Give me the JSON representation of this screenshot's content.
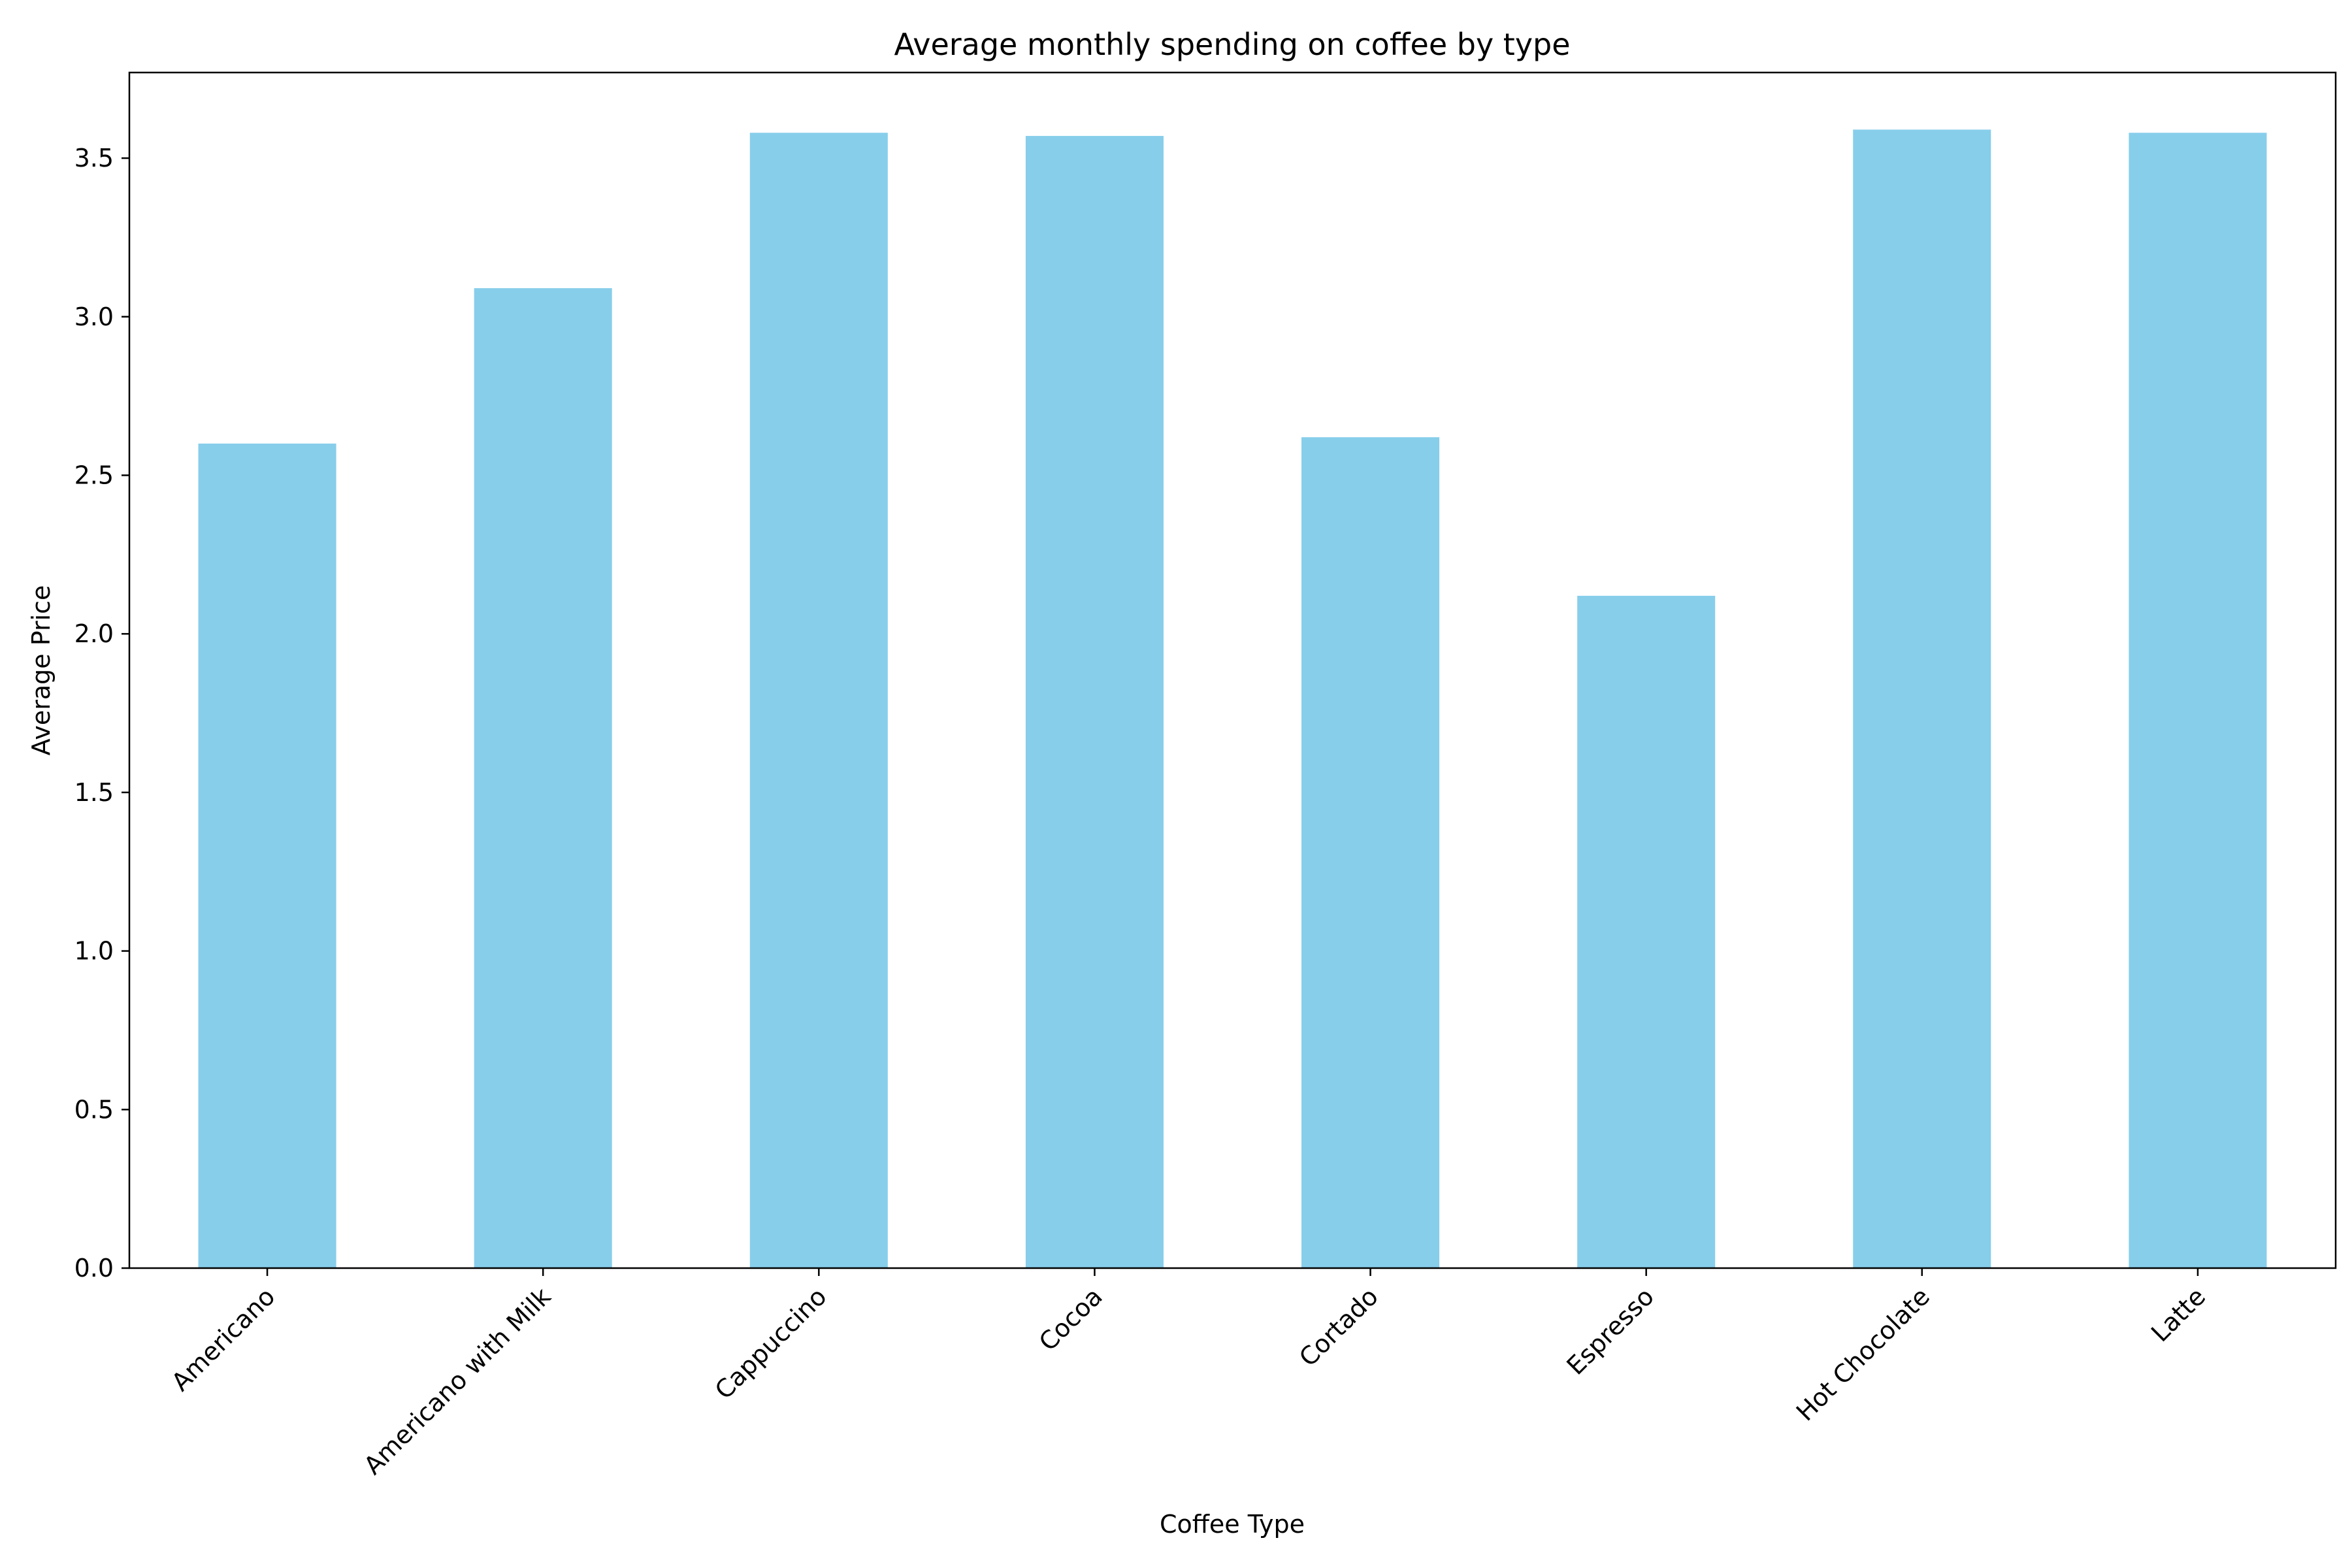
{
  "chart_data": {
    "type": "bar",
    "title": "Average monthly spending on coffee by type",
    "xlabel": "Coffee Type",
    "ylabel": "Average Price",
    "categories": [
      "Americano",
      "Americano with Milk",
      "Cappuccino",
      "Cocoa",
      "Cortado",
      "Espresso",
      "Hot Chocolate",
      "Latte"
    ],
    "values": [
      2.6,
      3.09,
      3.58,
      3.57,
      2.62,
      2.12,
      3.59,
      3.58
    ],
    "ylim": [
      0,
      3.77
    ],
    "yticks": [
      "0.0",
      "0.5",
      "1.0",
      "1.5",
      "2.0",
      "2.5",
      "3.0",
      "3.5"
    ],
    "bar_color": "#87CEEB",
    "grid": false,
    "legend": "none"
  }
}
